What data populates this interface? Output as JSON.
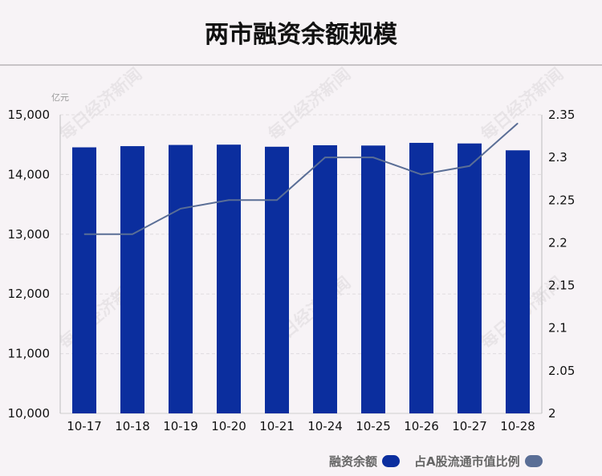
{
  "title": "两市融资余额规模",
  "watermark": "每日经济新闻",
  "chart_data": {
    "type": "bar",
    "title": "两市融资余额规模",
    "y_unit": "亿元",
    "categories": [
      "10-17",
      "10-18",
      "10-19",
      "10-20",
      "10-21",
      "10-24",
      "10-25",
      "10-26",
      "10-27",
      "10-28"
    ],
    "series": [
      {
        "name": "融资余额",
        "type": "bar",
        "axis": "left",
        "color": "#0b2e9e",
        "values": [
          14455,
          14475,
          14495,
          14500,
          14465,
          14490,
          14485,
          14530,
          14520,
          14405
        ]
      },
      {
        "name": "占A股流通市值比例",
        "type": "line",
        "axis": "right",
        "color": "#5a6e96",
        "values": [
          2.21,
          2.21,
          2.24,
          2.25,
          2.25,
          2.3,
          2.3,
          2.28,
          2.29,
          2.34
        ]
      }
    ],
    "y_left": {
      "min": 10000,
      "max": 15000,
      "ticks": [
        10000,
        11000,
        12000,
        13000,
        14000,
        15000
      ],
      "tick_labels": [
        "10,000",
        "11,000",
        "12,000",
        "13,000",
        "14,000",
        "15,000"
      ]
    },
    "y_right": {
      "min": 2,
      "max": 2.35,
      "ticks": [
        2,
        2.05,
        2.1,
        2.15,
        2.2,
        2.25,
        2.3,
        2.35
      ],
      "tick_labels": [
        "2",
        "2.05",
        "2.1",
        "2.15",
        "2.2",
        "2.25",
        "2.3",
        "2.35"
      ]
    },
    "grid": true,
    "legend_position": "bottom-right"
  },
  "legend": {
    "bar_label": "融资余额",
    "line_label": "占A股流通市值比例",
    "bar_color": "#0b2e9e",
    "line_color": "#5a6e96"
  }
}
